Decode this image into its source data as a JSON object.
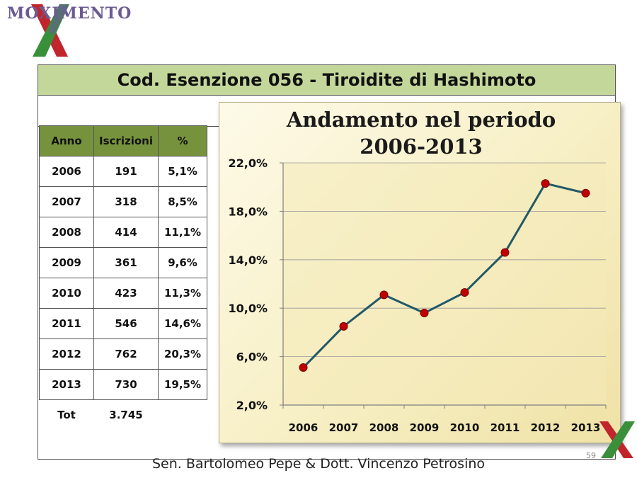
{
  "logo": {
    "text": "MOXIMENTO"
  },
  "slide": {
    "title": "Cod. Esenzione 056 - Tiroidite di Hashimoto",
    "footer": "Sen. Bartolomeo Pepe &  Dott. Vincenzo Petrosino",
    "page_number": "59"
  },
  "table": {
    "headers": [
      "Anno",
      "Iscrizioni",
      "%"
    ],
    "rows": [
      [
        "2006",
        "191",
        "5,1%"
      ],
      [
        "2007",
        "318",
        "8,5%"
      ],
      [
        "2008",
        "414",
        "11,1%"
      ],
      [
        "2009",
        "361",
        "9,6%"
      ],
      [
        "2010",
        "423",
        "11,3%"
      ],
      [
        "2011",
        "546",
        "14,6%"
      ],
      [
        "2012",
        "762",
        "20,3%"
      ],
      [
        "2013",
        "730",
        "19,5%"
      ]
    ],
    "total_label": "Tot",
    "total_value": "3.745"
  },
  "chart_data": {
    "type": "line",
    "title": "Andamento nel periodo 2006-2013",
    "title_lines": [
      "Andamento nel periodo",
      "2006-2013"
    ],
    "categories": [
      "2006",
      "2007",
      "2008",
      "2009",
      "2010",
      "2011",
      "2012",
      "2013"
    ],
    "values": [
      5.1,
      8.5,
      11.1,
      9.6,
      11.3,
      14.6,
      20.3,
      19.5
    ],
    "y_ticks": [
      "2,0%",
      "6,0%",
      "10,0%",
      "14,0%",
      "18,0%",
      "22,0%"
    ],
    "ylim": [
      2,
      22
    ],
    "grid": true,
    "legend": "none",
    "line_color": "#215968",
    "marker_color": "#c00000"
  }
}
